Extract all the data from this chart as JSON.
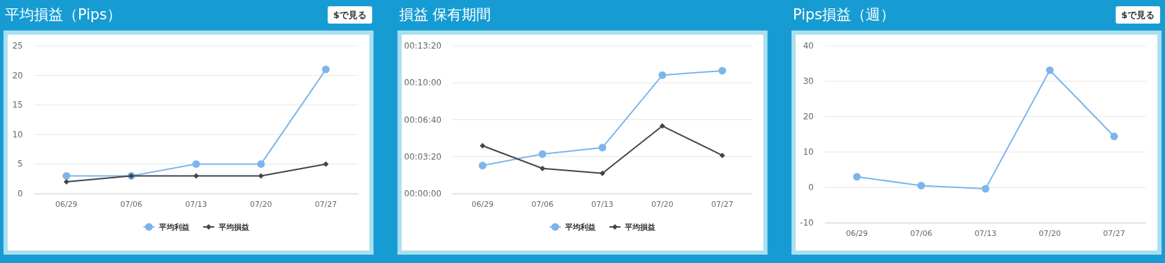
{
  "chart_data": [
    {
      "type": "line",
      "title": "平均損益（Pips）",
      "annotations": [
        "$で見る"
      ],
      "categories": [
        "06/29",
        "07/06",
        "07/13",
        "07/20",
        "07/27"
      ],
      "series": [
        {
          "name": "平均利益",
          "color": "#7cb5ec",
          "marker": "circle",
          "values": [
            3,
            3,
            5,
            5,
            21
          ]
        },
        {
          "name": "平均損益",
          "color": "#434348",
          "marker": "diamond",
          "values": [
            2,
            3,
            3,
            3,
            5
          ]
        }
      ],
      "ylim": [
        0,
        25
      ],
      "yticks": [
        0,
        5,
        10,
        15,
        20,
        25
      ],
      "grid": "y",
      "legend": "bottom"
    },
    {
      "type": "line",
      "title": "損益 保有期間",
      "categories": [
        "06/29",
        "07/06",
        "07/13",
        "07/20",
        "07/27"
      ],
      "series": [
        {
          "name": "平均利益",
          "color": "#7cb5ec",
          "marker": "circle",
          "values": [
            152,
            214,
            249,
            641,
            665
          ]
        },
        {
          "name": "平均損益",
          "color": "#434348",
          "marker": "diamond",
          "values": [
            259,
            136,
            110,
            366,
            207
          ]
        }
      ],
      "ylim": [
        0,
        800
      ],
      "yticks": [
        {
          "value": 0,
          "label": "00:00:00"
        },
        {
          "value": 200,
          "label": "00:03:20"
        },
        {
          "value": 400,
          "label": "00:06:40"
        },
        {
          "value": 600,
          "label": "00:10:00"
        },
        {
          "value": 800,
          "label": "00:13:20"
        }
      ],
      "grid": "y",
      "legend": "bottom"
    },
    {
      "type": "line",
      "title": "Pips損益（週）",
      "annotations": [
        "$で見る"
      ],
      "categories": [
        "06/29",
        "07/06",
        "07/13",
        "07/20",
        "07/27"
      ],
      "series": [
        {
          "color": "#7cb5ec",
          "marker": "circle",
          "values": [
            3.0,
            0.5,
            -0.4,
            33.1,
            14.4
          ]
        }
      ],
      "ylim": [
        -10,
        40
      ],
      "yticks": [
        -10,
        0,
        10,
        20,
        30,
        40
      ],
      "grid": "y",
      "legend": false
    }
  ]
}
